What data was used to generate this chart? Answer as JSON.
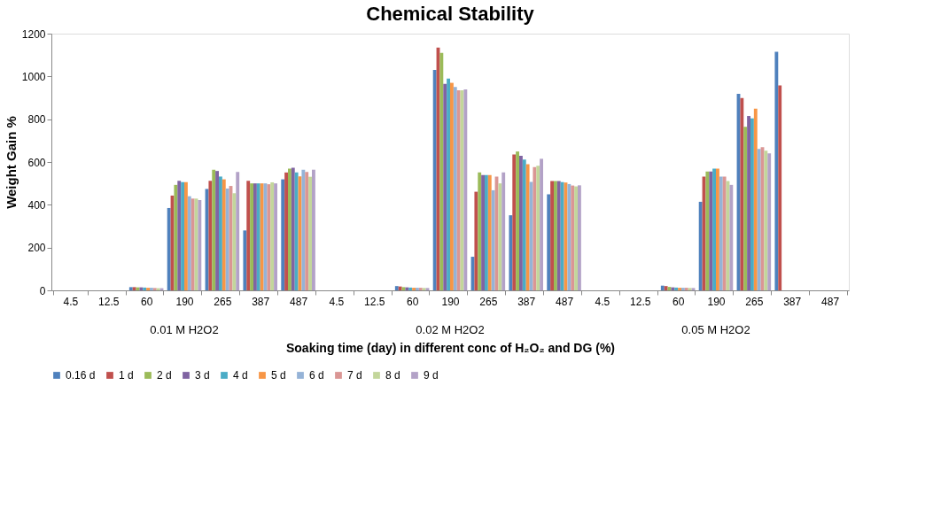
{
  "chart_data": {
    "type": "bar",
    "title": "Chemical Stability",
    "xlabel": "Soaking time (day) in different conc of H₂O₂ and DG (%)",
    "ylabel": "Weight Gain %",
    "categories": [
      "4.5",
      "12.5",
      "60",
      "190",
      "265",
      "387",
      "487",
      "4.5",
      "12.5",
      "60",
      "190",
      "265",
      "387",
      "487",
      "4.5",
      "12.5",
      "60",
      "190",
      "265",
      "387",
      "487"
    ],
    "annotations": [
      "0.01 M H2O2",
      "0.02 M H2O2",
      "0.05 M H2O2"
    ],
    "ylim": [
      0,
      1200
    ],
    "yticks": [
      0,
      200,
      400,
      600,
      800,
      1000,
      1200
    ],
    "grid": false,
    "legend": "bottom",
    "series": [
      {
        "name": "0.16 d",
        "color": "#4f81bd",
        "values": [
          null,
          null,
          15,
          385,
          474,
          280,
          519,
          null,
          null,
          20,
          1030,
          157,
          351,
          449,
          null,
          null,
          22,
          414,
          919,
          1115,
          null
        ]
      },
      {
        "name": "1 d",
        "color": "#c0504d",
        "values": [
          null,
          null,
          15,
          443,
          512,
          512,
          551,
          null,
          null,
          18,
          1135,
          461,
          635,
          511,
          null,
          null,
          20,
          532,
          899,
          958,
          null
        ]
      },
      {
        "name": "2 d",
        "color": "#9bbb59",
        "values": [
          null,
          null,
          14,
          493,
          564,
          500,
          569,
          null,
          null,
          15,
          1110,
          551,
          649,
          511,
          null,
          null,
          16,
          556,
          764,
          null,
          null
        ]
      },
      {
        "name": "3 d",
        "color": "#8064a2",
        "values": [
          null,
          null,
          14,
          512,
          558,
          500,
          573,
          null,
          null,
          14,
          965,
          539,
          629,
          511,
          null,
          null,
          14,
          556,
          815,
          null,
          null
        ]
      },
      {
        "name": "4 d",
        "color": "#4bacc6",
        "values": [
          null,
          null,
          13,
          506,
          532,
          500,
          551,
          null,
          null,
          13,
          990,
          539,
          611,
          506,
          null,
          null,
          13,
          569,
          804,
          null,
          null
        ]
      },
      {
        "name": "5 d",
        "color": "#f79646",
        "values": [
          null,
          null,
          12,
          506,
          519,
          500,
          533,
          null,
          null,
          12,
          970,
          539,
          590,
          504,
          null,
          null,
          12,
          569,
          849,
          null,
          null
        ]
      },
      {
        "name": "6 d",
        "color": "#95b3d7",
        "values": [
          null,
          null,
          12,
          440,
          476,
          500,
          564,
          null,
          null,
          12,
          951,
          468,
          507,
          497,
          null,
          null,
          12,
          532,
          661,
          null,
          null
        ]
      },
      {
        "name": "7 d",
        "color": "#da9694",
        "values": [
          null,
          null,
          11,
          429,
          488,
          496,
          553,
          null,
          null,
          12,
          935,
          532,
          576,
          490,
          null,
          null,
          12,
          532,
          669,
          null,
          null
        ]
      },
      {
        "name": "8 d",
        "color": "#c3d69b",
        "values": [
          null,
          null,
          10,
          429,
          454,
          505,
          531,
          null,
          null,
          11,
          935,
          500,
          582,
          486,
          null,
          null,
          11,
          511,
          653,
          null,
          null
        ]
      },
      {
        "name": "9 d",
        "color": "#b3a2c7",
        "values": [
          null,
          null,
          10,
          422,
          553,
          500,
          564,
          null,
          null,
          11,
          939,
          551,
          615,
          491,
          null,
          null,
          11,
          493,
          640,
          null,
          null
        ]
      }
    ]
  }
}
